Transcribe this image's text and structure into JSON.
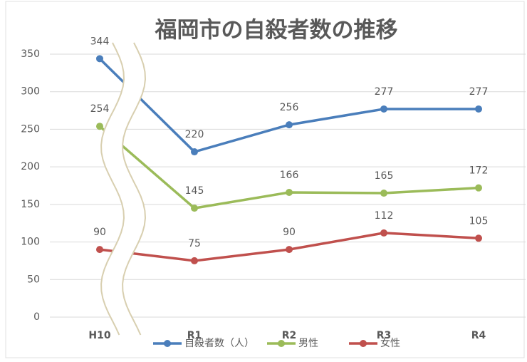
{
  "chart_data": {
    "type": "line",
    "title": "福岡市の自殺者数の推移",
    "categories": [
      "H10",
      "R1",
      "R2",
      "R3",
      "R4"
    ],
    "series": [
      {
        "name": "自殺者数（人）",
        "color": "#4a7ebb",
        "values": [
          344,
          220,
          256,
          277,
          277
        ]
      },
      {
        "name": "男性",
        "color": "#9bbb59",
        "values": [
          254,
          145,
          166,
          165,
          172
        ]
      },
      {
        "name": "女性",
        "color": "#c0504d",
        "values": [
          90,
          75,
          90,
          112,
          105
        ]
      }
    ],
    "ylim": [
      0,
      350
    ],
    "yticks": [
      0,
      50,
      100,
      150,
      200,
      250,
      300,
      350
    ],
    "grid": true,
    "legend": "bottom"
  }
}
